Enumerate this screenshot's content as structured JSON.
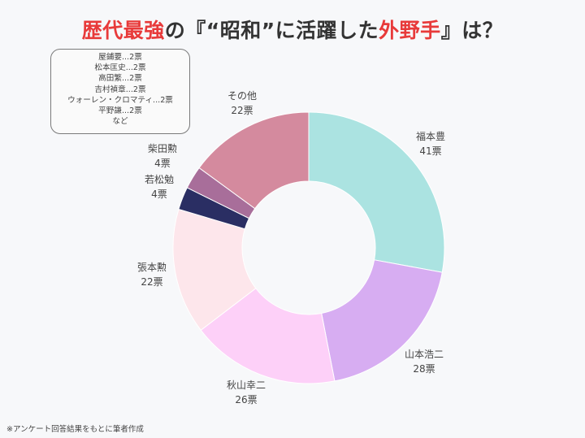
{
  "title": {
    "part1": "歴代最強",
    "part2": "の『“昭和”に活躍した",
    "part3": "外野手",
    "part4": "』は？"
  },
  "others_box": {
    "lines": [
      "屋鋪要...2票",
      "松本匡史...2票",
      "高田繁...2票",
      "吉村禎章...2票",
      "ウォーレン・クロマティ...2票",
      "平野謙...2票",
      "など"
    ]
  },
  "footnote": "※アンケート回答結果をもとに筆者作成",
  "chart_data": {
    "type": "pie",
    "donut": true,
    "unit": "票",
    "slices": [
      {
        "name": "福本豊",
        "value": 41,
        "label": "41票",
        "color": "#abe3e1"
      },
      {
        "name": "山本浩二",
        "value": 28,
        "label": "28票",
        "color": "#d7adf2"
      },
      {
        "name": "秋山幸二",
        "value": 26,
        "label": "26票",
        "color": "#fdd0f8"
      },
      {
        "name": "張本勲",
        "value": 22,
        "label": "22票",
        "color": "#fde6eb"
      },
      {
        "name": "若松勉",
        "value": 4,
        "label": "4票",
        "color": "#2a2e63"
      },
      {
        "name": "柴田勲",
        "value": 4,
        "label": "4票",
        "color": "#a86e9a"
      },
      {
        "name": "その他",
        "value": 22,
        "label": "22票",
        "color": "#d48a9e"
      }
    ]
  }
}
